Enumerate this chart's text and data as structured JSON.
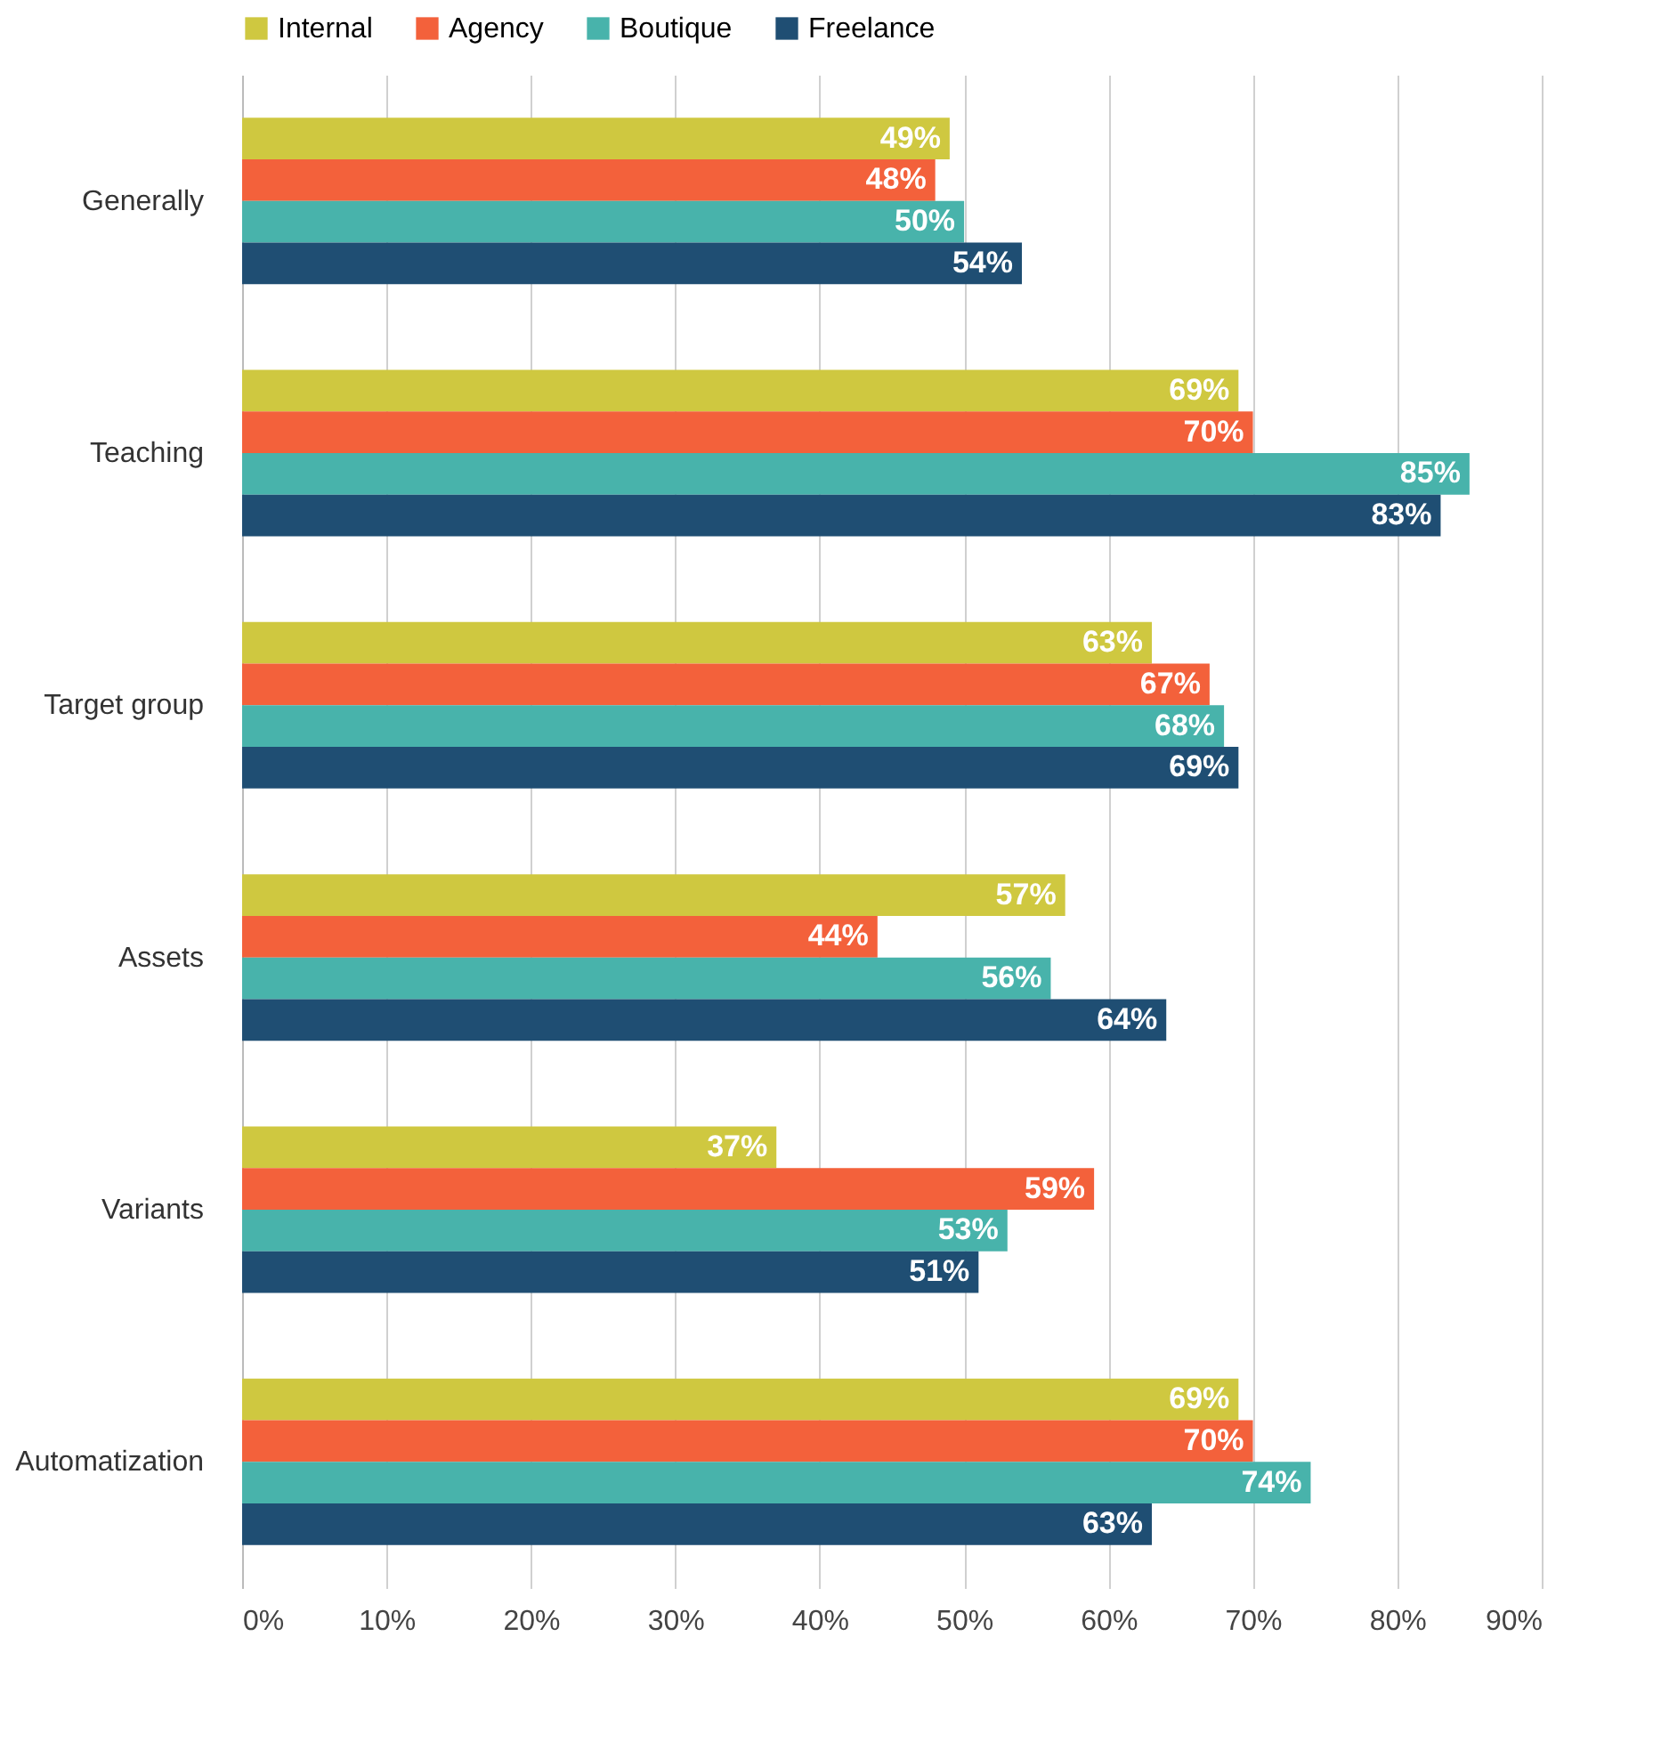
{
  "chart_data": {
    "type": "bar",
    "orientation": "horizontal",
    "categories": [
      "Generally",
      "Teaching",
      "Target group",
      "Assets",
      "Variants",
      "Automatization"
    ],
    "series": [
      {
        "name": "Internal",
        "color": "#cfc840",
        "values": [
          49,
          69,
          63,
          57,
          37,
          69
        ],
        "value_labels": [
          "49%",
          "69%",
          "63%",
          "57%",
          "37%",
          "69%"
        ]
      },
      {
        "name": "Agency",
        "color": "#f3613b",
        "values": [
          48,
          70,
          67,
          44,
          59,
          70
        ],
        "value_labels": [
          "48%",
          "70%",
          "67%",
          "44%",
          "59%",
          "70%"
        ]
      },
      {
        "name": "Boutique",
        "color": "#48b3ab",
        "values": [
          50,
          85,
          68,
          56,
          53,
          74
        ],
        "value_labels": [
          "50%",
          "85%",
          "68%",
          "56%",
          "53%",
          "74%"
        ]
      },
      {
        "name": "Freelance",
        "color": "#1f4e73",
        "values": [
          54,
          83,
          69,
          64,
          51,
          63
        ],
        "value_labels": [
          "54%",
          "83%",
          "69%",
          "64%",
          "51%",
          "63%"
        ]
      }
    ],
    "xlim": [
      0,
      90
    ],
    "xticks": [
      {
        "value": 0,
        "label": "0%"
      },
      {
        "value": 10,
        "label": "10%"
      },
      {
        "value": 20,
        "label": "20%"
      },
      {
        "value": 30,
        "label": "30%"
      },
      {
        "value": 40,
        "label": "40%"
      },
      {
        "value": 50,
        "label": "50%"
      },
      {
        "value": 60,
        "label": "60%"
      },
      {
        "value": 70,
        "label": "70%"
      },
      {
        "value": 80,
        "label": "80%"
      },
      {
        "value": 90,
        "label": "90%"
      }
    ],
    "grid": "x",
    "legend": "top"
  }
}
